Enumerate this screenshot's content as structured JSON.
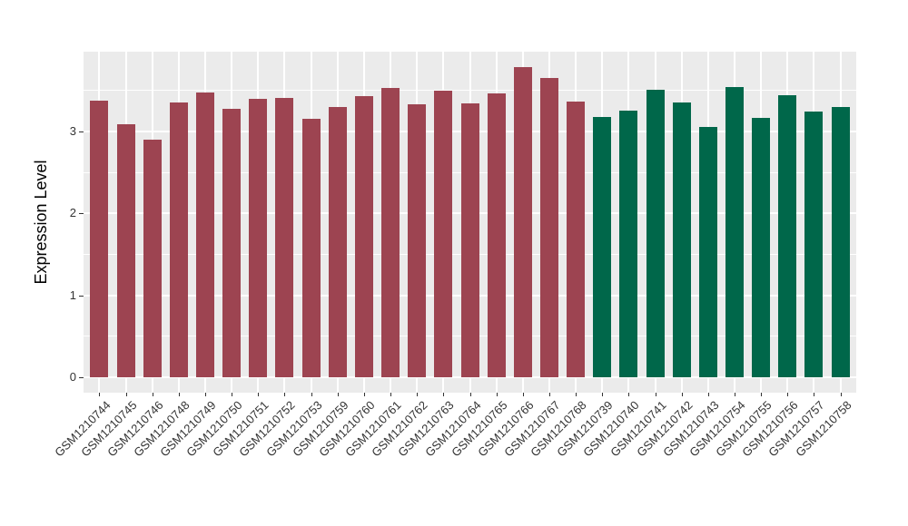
{
  "chart_data": {
    "type": "bar",
    "title": "",
    "xlabel": "",
    "ylabel": "Expression Level",
    "legend": "none",
    "grid": "on",
    "panel_background": "#EBEBEB",
    "gridline_color": "#FFFFFF",
    "tick_color": "#333333",
    "ylim": [
      0,
      3.96
    ],
    "yticks": [
      0,
      1,
      2,
      3
    ],
    "minor_yticks": [
      0.5,
      1.5,
      2.5,
      3.5
    ],
    "group_colors": [
      "#9D4451",
      "#00674A"
    ],
    "categories": [
      "GSM1210744",
      "GSM1210745",
      "GSM1210746",
      "GSM1210748",
      "GSM1210749",
      "GSM1210750",
      "GSM1210751",
      "GSM1210752",
      "GSM1210753",
      "GSM1210759",
      "GSM1210760",
      "GSM1210761",
      "GSM1210762",
      "GSM1210763",
      "GSM1210764",
      "GSM1210765",
      "GSM1210766",
      "GSM1210767",
      "GSM1210768",
      "GSM1210739",
      "GSM1210740",
      "GSM1210741",
      "GSM1210742",
      "GSM1210743",
      "GSM1210754",
      "GSM1210755",
      "GSM1210756",
      "GSM1210757",
      "GSM1210758"
    ],
    "values": [
      3.38,
      3.09,
      2.9,
      3.36,
      3.48,
      3.28,
      3.4,
      3.41,
      3.16,
      3.3,
      3.43,
      3.53,
      3.33,
      3.5,
      3.34,
      3.47,
      3.79,
      3.66,
      3.37,
      3.18,
      3.26,
      3.51,
      3.36,
      3.06,
      3.54,
      3.17,
      3.44,
      3.24,
      3.3
    ],
    "bar_group_index": [
      0,
      0,
      0,
      0,
      0,
      0,
      0,
      0,
      0,
      0,
      0,
      0,
      0,
      0,
      0,
      0,
      0,
      0,
      0,
      1,
      1,
      1,
      1,
      1,
      1,
      1,
      1,
      1,
      1
    ]
  }
}
